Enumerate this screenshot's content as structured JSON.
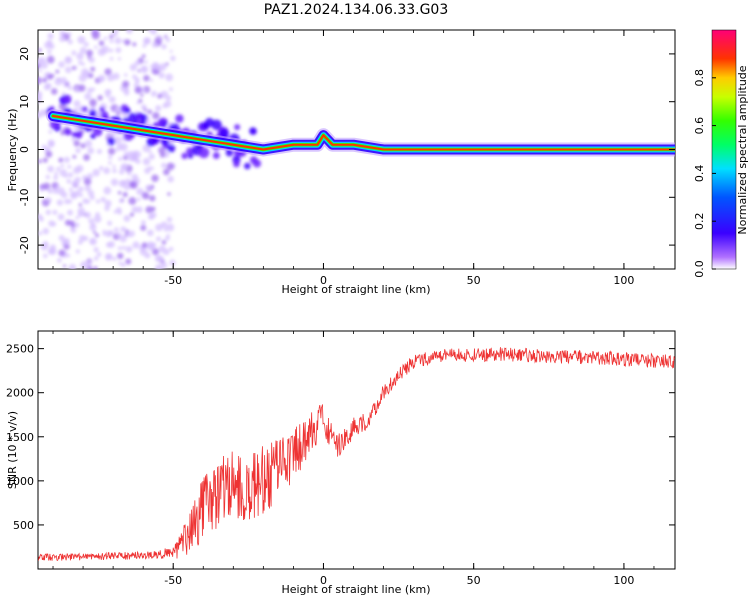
{
  "title": "PAZ1.2024.134.06.33.G03",
  "chart_data": [
    {
      "id": "spectrogram",
      "type": "heatmap",
      "xlabel": "Height of straight line (km)",
      "ylabel": "Frequency (Hz)",
      "xlim": [
        -95,
        117
      ],
      "ylim": [
        -25,
        25
      ],
      "xticks": [
        -50,
        0,
        50,
        100
      ],
      "yticks": [
        -20,
        -10,
        0,
        10,
        20
      ],
      "colorbar": {
        "label": "Normalized spectral amplitude",
        "range": [
          0,
          1
        ],
        "ticks": [
          0.0,
          0.2,
          0.4,
          0.6,
          0.8
        ]
      },
      "ridge": [
        {
          "x": -90,
          "f": 7
        },
        {
          "x": -80,
          "f": 6
        },
        {
          "x": -70,
          "f": 5
        },
        {
          "x": -60,
          "f": 4
        },
        {
          "x": -50,
          "f": 3
        },
        {
          "x": -40,
          "f": 2
        },
        {
          "x": -30,
          "f": 1
        },
        {
          "x": -20,
          "f": 0
        },
        {
          "x": -10,
          "f": 1
        },
        {
          "x": -2,
          "f": 1
        },
        {
          "x": 0,
          "f": 3
        },
        {
          "x": 3,
          "f": 1
        },
        {
          "x": 10,
          "f": 1
        },
        {
          "x": 20,
          "f": 0
        },
        {
          "x": 117,
          "f": 0
        }
      ]
    },
    {
      "id": "snr",
      "type": "line",
      "xlabel": "Height of straight line (km)",
      "ylabel": "SNR (10 * v/v)",
      "xlim": [
        -95,
        117
      ],
      "ylim": [
        0,
        2700
      ],
      "xticks": [
        -50,
        0,
        50,
        100
      ],
      "yticks": [
        500,
        1000,
        1500,
        2000,
        2500
      ],
      "color": "#ee3333",
      "series": [
        {
          "x": [
            -95,
            -80,
            -65,
            -55,
            -50,
            -45,
            -40,
            -35,
            -30,
            -25,
            -20,
            -15,
            -10,
            -5,
            0,
            5,
            10,
            15,
            20,
            25,
            30,
            35,
            40,
            50,
            60,
            70,
            80,
            90,
            100,
            110,
            117
          ],
          "values": [
            130,
            140,
            150,
            160,
            200,
            350,
            700,
            850,
            950,
            900,
            1000,
            1150,
            1300,
            1500,
            1700,
            1400,
            1600,
            1700,
            2000,
            2200,
            2350,
            2400,
            2420,
            2430,
            2440,
            2420,
            2410,
            2400,
            2380,
            2360,
            2350
          ],
          "noise": [
            40,
            40,
            45,
            50,
            80,
            250,
            350,
            400,
            400,
            400,
            400,
            350,
            300,
            250,
            200,
            150,
            120,
            100,
            90,
            80,
            80,
            80,
            80,
            80,
            80,
            80,
            80,
            80,
            80,
            80,
            80
          ]
        }
      ]
    }
  ]
}
